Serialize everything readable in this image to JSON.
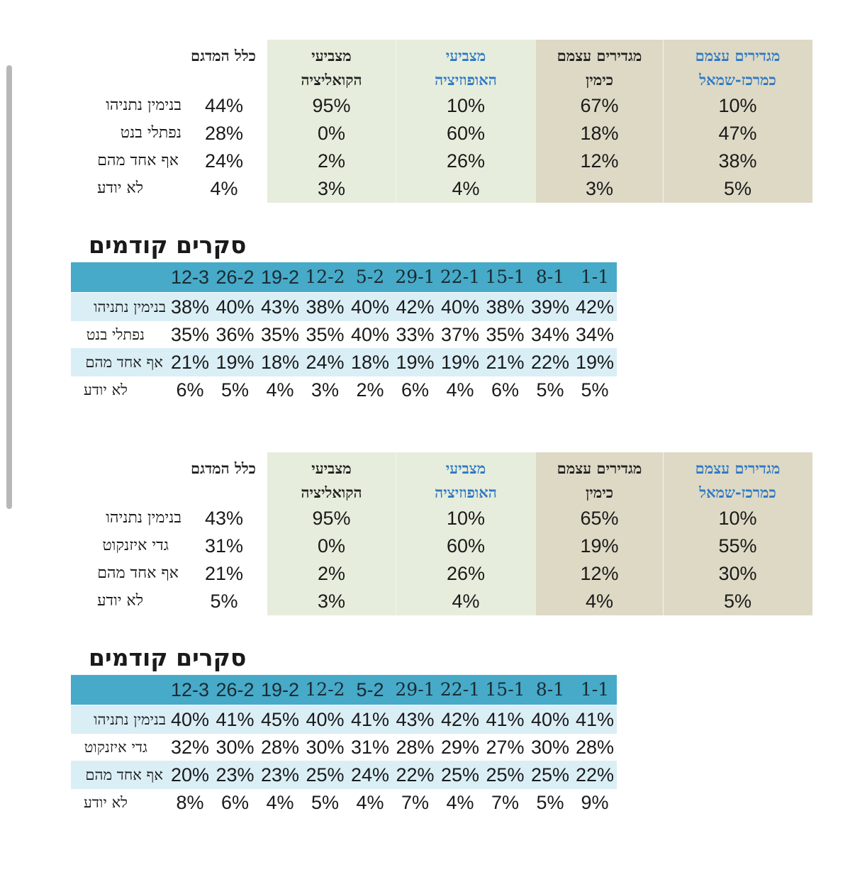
{
  "column_headers": {
    "total": "כלל המדגם",
    "coalition": [
      "מצביעי",
      "הקואליציה"
    ],
    "opposition": [
      "מצביעי",
      "האופוזיציה"
    ],
    "right": [
      "מגדירים עצמם",
      "כימין"
    ],
    "center_left": [
      "מגדירים עצמם",
      "כמרכז-שמאל"
    ]
  },
  "history_title": "סקרים קודמים",
  "history_dates": [
    "12-3",
    "26-2",
    "19-2",
    "12-2",
    "5-2",
    "29-1",
    "22-1",
    "15-1",
    "8-1",
    "1-1"
  ],
  "poll1": {
    "rows": [
      {
        "label": "בנימין נתניהו",
        "total": "44%",
        "coalition": "95%",
        "opposition": "10%",
        "right": "67%",
        "center_left": "10%"
      },
      {
        "label": "נפתלי בנט",
        "total": "28%",
        "coalition": "0%",
        "opposition": "60%",
        "right": "18%",
        "center_left": "47%"
      },
      {
        "label": "אף אחד מהם",
        "total": "24%",
        "coalition": "2%",
        "opposition": "26%",
        "right": "12%",
        "center_left": "38%"
      },
      {
        "label": "לא יודע",
        "total": "4%",
        "coalition": "3%",
        "opposition": "4%",
        "right": "3%",
        "center_left": "5%"
      }
    ]
  },
  "history1": {
    "rows": [
      {
        "label": "בנימין נתניהו",
        "values": [
          "38%",
          "40%",
          "43%",
          "38%",
          "40%",
          "42%",
          "40%",
          "38%",
          "39%",
          "42%"
        ]
      },
      {
        "label": "נפתלי בנט",
        "values": [
          "35%",
          "36%",
          "35%",
          "35%",
          "40%",
          "33%",
          "37%",
          "35%",
          "34%",
          "34%"
        ]
      },
      {
        "label": "אף אחד מהם",
        "values": [
          "21%",
          "19%",
          "18%",
          "24%",
          "18%",
          "19%",
          "19%",
          "21%",
          "22%",
          "19%"
        ]
      },
      {
        "label": "לא יודע",
        "values": [
          "6%",
          "5%",
          "4%",
          "3%",
          "2%",
          "6%",
          "4%",
          "6%",
          "5%",
          "5%"
        ]
      }
    ]
  },
  "poll2": {
    "rows": [
      {
        "label": "בנימין נתניהו",
        "total": "43%",
        "coalition": "95%",
        "opposition": "10%",
        "right": "65%",
        "center_left": "10%"
      },
      {
        "label": "גדי איזנקוט",
        "total": "31%",
        "coalition": "0%",
        "opposition": "60%",
        "right": "19%",
        "center_left": "55%"
      },
      {
        "label": "אף אחד מהם",
        "total": "21%",
        "coalition": "2%",
        "opposition": "26%",
        "right": "12%",
        "center_left": "30%"
      },
      {
        "label": "לא יודע",
        "total": "5%",
        "coalition": "3%",
        "opposition": "4%",
        "right": "4%",
        "center_left": "5%"
      }
    ]
  },
  "history2": {
    "rows": [
      {
        "label": "בנימין נתניהו",
        "values": [
          "40%",
          "41%",
          "45%",
          "40%",
          "41%",
          "43%",
          "42%",
          "41%",
          "40%",
          "41%"
        ]
      },
      {
        "label": "גדי איזנקוט",
        "values": [
          "32%",
          "30%",
          "28%",
          "30%",
          "31%",
          "28%",
          "29%",
          "27%",
          "30%",
          "28%"
        ]
      },
      {
        "label": "אף אחד מהם",
        "values": [
          "20%",
          "23%",
          "23%",
          "25%",
          "24%",
          "22%",
          "25%",
          "25%",
          "25%",
          "22%"
        ]
      },
      {
        "label": "לא יודע",
        "values": [
          "8%",
          "6%",
          "4%",
          "5%",
          "4%",
          "7%",
          "4%",
          "7%",
          "5%",
          "9%"
        ]
      }
    ]
  },
  "colors": {
    "header_blue_text": "#2f78c4",
    "history_header_bg": "#46aac8",
    "history_shade_bg": "#daeef6",
    "green_panel": "#e6eddc",
    "tan_panel": "#ddd9c5"
  }
}
